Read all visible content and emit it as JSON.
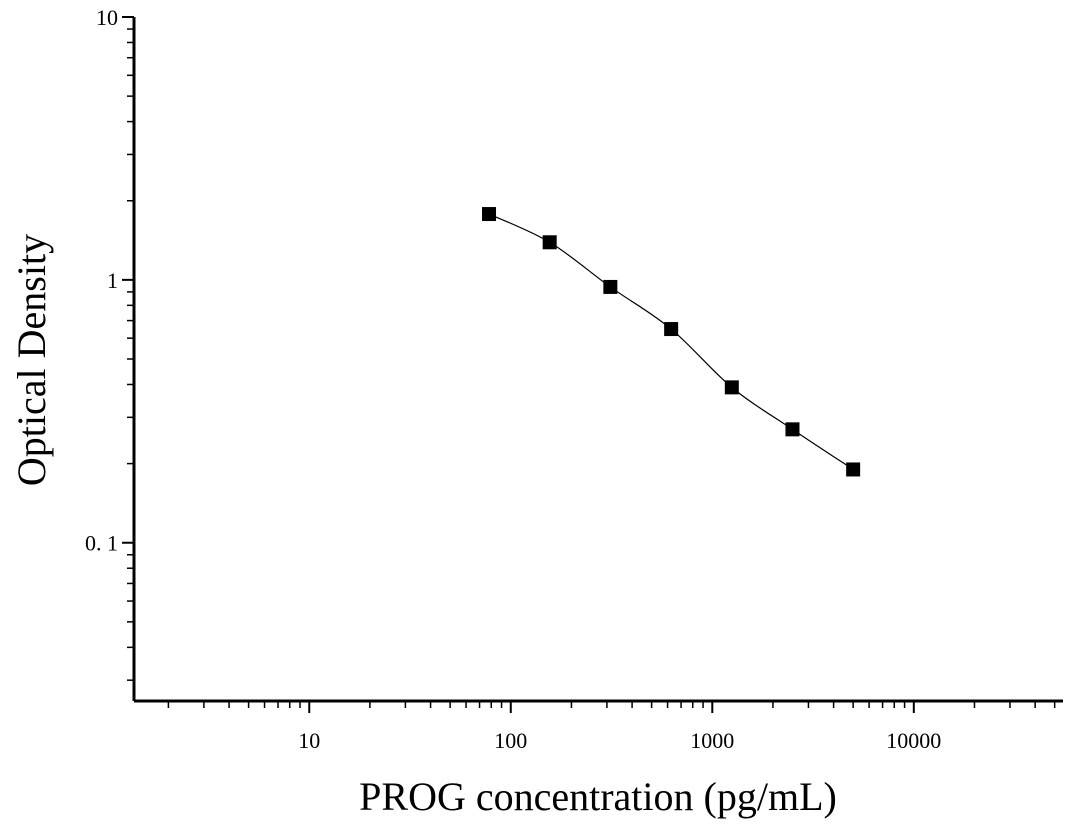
{
  "chart_data": {
    "type": "scatter",
    "title": "",
    "xlabel": "PROG concentration (pg/mL)",
    "ylabel": "Optical Density",
    "xscale": "log",
    "yscale": "log",
    "xlim": [
      1.35,
      55000
    ],
    "ylim": [
      0.025,
      10
    ],
    "x_ticks": [
      10,
      100,
      1000,
      10000
    ],
    "x_tick_labels": [
      "10",
      "100",
      "1000",
      "10000"
    ],
    "y_ticks": [
      0.1,
      1,
      10
    ],
    "y_tick_labels": [
      "0. 1",
      "1",
      "10"
    ],
    "grid": false,
    "legend": "none",
    "marker": "square",
    "marker_color": "#000000",
    "curve_color": "#000000",
    "series": [
      {
        "x": [
          78,
          156,
          312,
          625,
          1250,
          2500,
          5000
        ],
        "y": [
          1.78,
          1.39,
          0.94,
          0.65,
          0.39,
          0.27,
          0.19
        ]
      }
    ]
  }
}
